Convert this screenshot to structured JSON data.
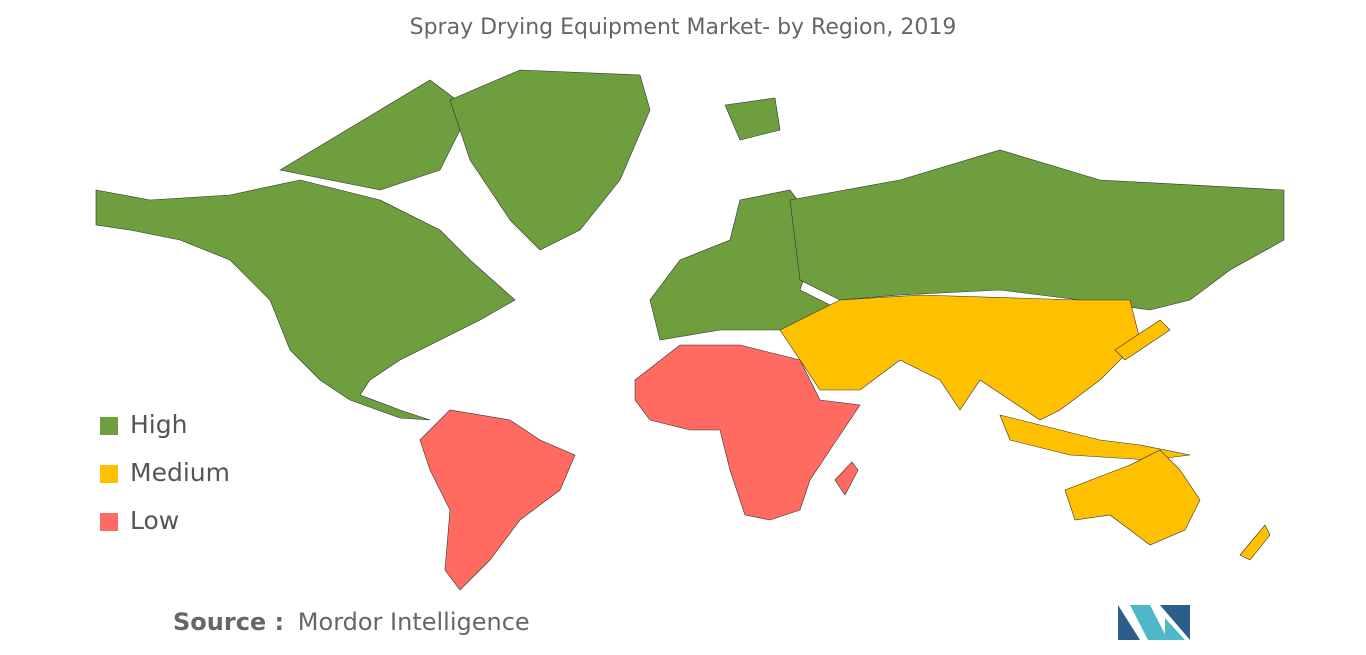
{
  "title": "Spray Drying Equipment Market- by Region, 2019",
  "legend": [
    {
      "name": "High",
      "color": "#6f9e3f"
    },
    {
      "name": "Medium",
      "color": "#ffc000"
    },
    {
      "name": "Low",
      "color": "#ff6b61"
    }
  ],
  "source": {
    "label": "Source :",
    "text": "Mordor Intelligence"
  }
}
